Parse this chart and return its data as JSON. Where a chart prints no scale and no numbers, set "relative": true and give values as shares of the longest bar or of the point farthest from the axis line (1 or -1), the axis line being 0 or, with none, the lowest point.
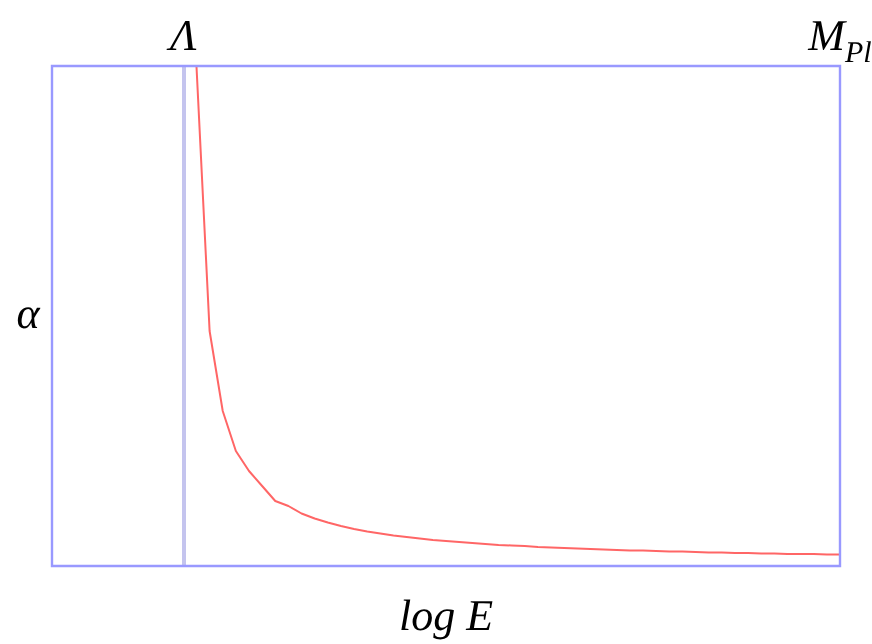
{
  "chart_data": {
    "type": "line",
    "relative": true,
    "xlabel": "log E",
    "ylabel": "α",
    "tick_labels": "x",
    "legend": false,
    "marker": "none",
    "line_style": "solid",
    "categories": [
      null,
      null,
      null,
      null,
      null,
      null,
      null,
      null,
      null,
      null,
      "Λ",
      null,
      null,
      null,
      null,
      null,
      null,
      null,
      null,
      null,
      null,
      null,
      null,
      null,
      null,
      null,
      null,
      null,
      null,
      null,
      null,
      null,
      null,
      null,
      null,
      null,
      null,
      null,
      null,
      null,
      null,
      null,
      null,
      null,
      null,
      null,
      null,
      null,
      null,
      null,
      null,
      null,
      null,
      null,
      null,
      null,
      null,
      null,
      null,
      null,
      "M$_{Pl}$"
    ],
    "series": [
      {
        "color": "#ff6666",
        "values": [
          null,
          null,
          null,
          null,
          null,
          null,
          null,
          null,
          null,
          null,
          null,
          1.0,
          0.47,
          0.31,
          0.23,
          0.19,
          0.16,
          0.13,
          0.12,
          0.105,
          0.095,
          0.087,
          0.08,
          0.074,
          0.069,
          0.065,
          0.061,
          0.058,
          0.055,
          0.052,
          0.05,
          0.048,
          0.046,
          0.044,
          0.042,
          0.041,
          0.04,
          0.038,
          0.037,
          0.036,
          0.035,
          0.034,
          0.033,
          0.032,
          0.031,
          0.031,
          0.03,
          0.029,
          0.029,
          0.028,
          0.027,
          0.027,
          0.026,
          0.026,
          0.025,
          0.025,
          0.024,
          0.024,
          0.024,
          0.023,
          0.023
        ]
      }
    ],
    "ref_lines": [
      {
        "axis": "x",
        "value": "Λ",
        "color": "#c4c4ee"
      }
    ]
  }
}
